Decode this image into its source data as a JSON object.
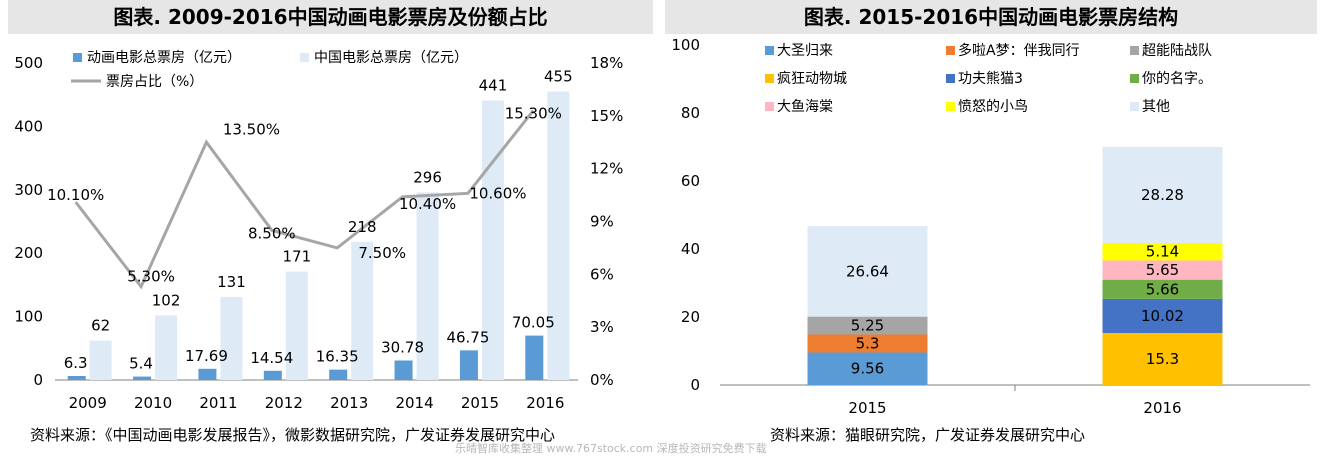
{
  "left_panel": {
    "title": "图表. 2009-2016中国动画电影票房及份额占比",
    "source": "资料来源：《中国动画电影发展报告》，微影数据研究院，广发证券发展研究中心"
  },
  "right_panel": {
    "title": "图表. 2015-2016中国动画电影票房结构",
    "source": "资料来源：猫眼研究院，广发证券发展研究中心"
  },
  "watermark": "乐晴智库收集整理 www.767stock.com 深度投资研究免费下载",
  "colors": {
    "anim_bar": "#5b9bd5",
    "total_bar": "#deebf7",
    "share_line": "#a6a6a6"
  },
  "chart_data": [
    {
      "type": "bar",
      "title": "",
      "categories": [
        "2009",
        "2010",
        "2011",
        "2012",
        "2013",
        "2014",
        "2015",
        "2016"
      ],
      "ylim": [
        0,
        500
      ],
      "yticks": [
        "0",
        "100",
        "200",
        "300",
        "400",
        "500"
      ],
      "y2lim": [
        0,
        18
      ],
      "y2ticks": [
        "0%",
        "3%",
        "6%",
        "9%",
        "12%",
        "15%",
        "18%"
      ],
      "series": [
        {
          "name": "动画电影总票房（亿元）",
          "kind": "bar",
          "axis": "left",
          "values": [
            6.3,
            5.4,
            17.69,
            14.54,
            16.35,
            30.78,
            46.75,
            70.05
          ],
          "labels": [
            "6.3",
            "5.4",
            "17.69",
            "14.54",
            "16.35",
            "30.78",
            "46.75",
            "70.05"
          ]
        },
        {
          "name": "中国电影总票房（亿元）",
          "kind": "bar",
          "axis": "left",
          "values": [
            62,
            102,
            131,
            171,
            218,
            296,
            441,
            455
          ],
          "labels": [
            "62",
            "102",
            "131",
            "171",
            "218",
            "296",
            "441",
            "455"
          ]
        },
        {
          "name": "票房占比（%）",
          "kind": "line",
          "axis": "right",
          "values": [
            10.1,
            5.3,
            13.5,
            8.5,
            7.5,
            10.4,
            10.6,
            15.3
          ],
          "labels": [
            "10.10%",
            "5.30%",
            "13.50%",
            "8.50%",
            "7.50%",
            "10.40%",
            "10.60%",
            "15.30%"
          ]
        }
      ]
    },
    {
      "type": "bar",
      "stacked": true,
      "title": "",
      "categories": [
        "2015",
        "2016"
      ],
      "ylim": [
        0,
        100
      ],
      "yticks": [
        "0",
        "20",
        "40",
        "60",
        "80",
        "100"
      ],
      "series": [
        {
          "name": "大圣归来",
          "color": "#5b9bd5",
          "values": [
            9.56,
            null
          ],
          "labels": [
            "9.56",
            ""
          ]
        },
        {
          "name": "多啦A梦：伴我同行",
          "color": "#ed7d31",
          "values": [
            5.3,
            null
          ],
          "labels": [
            "5.3",
            ""
          ]
        },
        {
          "name": "超能陆战队",
          "color": "#a5a5a5",
          "values": [
            5.25,
            null
          ],
          "labels": [
            "5.25",
            ""
          ]
        },
        {
          "name": "疯狂动物城",
          "color": "#ffc000",
          "values": [
            null,
            15.3
          ],
          "labels": [
            "",
            "15.3"
          ]
        },
        {
          "name": "功夫熊猫3",
          "color": "#4472c4",
          "values": [
            null,
            10.02
          ],
          "labels": [
            "",
            "10.02"
          ]
        },
        {
          "name": "你的名字。",
          "color": "#70ad47",
          "values": [
            null,
            5.66
          ],
          "labels": [
            "",
            "5.66"
          ]
        },
        {
          "name": "大鱼海棠",
          "color": "#ffb6c1",
          "values": [
            null,
            5.65
          ],
          "labels": [
            "",
            "5.65"
          ]
        },
        {
          "name": "愤怒的小鸟",
          "color": "#ffff00",
          "values": [
            null,
            5.14
          ],
          "labels": [
            "",
            "5.14"
          ]
        },
        {
          "name": "其他",
          "color": "#deebf7",
          "values": [
            26.64,
            28.28
          ],
          "labels": [
            "26.64",
            "28.28"
          ]
        }
      ]
    }
  ]
}
